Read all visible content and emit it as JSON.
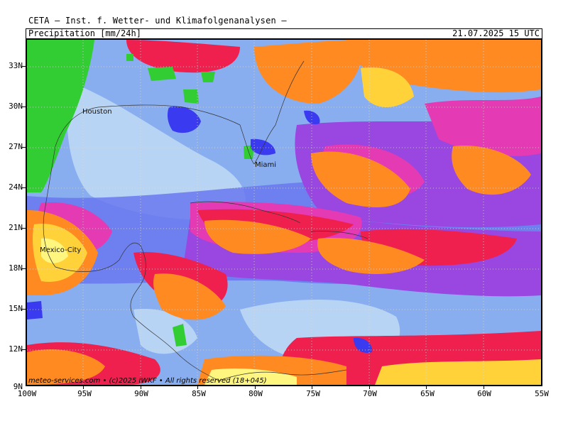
{
  "header": {
    "source": "CETA — Inst. f. Wetter- und Klimafolgenanalysen —",
    "parameter": "Precipitation [mm/24h]",
    "datetime": "21.07.2025 15 UTC"
  },
  "axes": {
    "lat_labels": [
      "33N",
      "30N",
      "27N",
      "24N",
      "21N",
      "18N",
      "15N",
      "12N",
      "9N"
    ],
    "lon_labels": [
      "100W",
      "95W",
      "90W",
      "85W",
      "80W",
      "75W",
      "70W",
      "65W",
      "60W",
      "55W"
    ]
  },
  "cities": [
    {
      "name": "Houston"
    },
    {
      "name": "Miami"
    },
    {
      "name": "Mexico-City"
    }
  ],
  "footer": {
    "credit": "meteo-services.com • (c)2025 IWKF • All rights reserved (18+045)"
  },
  "colors": {
    "land_dry": "#32cd32",
    "very_light": "#b8d4f4",
    "light": "#88aef0",
    "moderate": "#6a78ee",
    "purple": "#9a46e0",
    "magenta": "#e43ab4",
    "red": "#f0204e",
    "orange": "#ff8a22",
    "yellow_orange": "#ffd23a",
    "yellow": "#fff680",
    "blue_patch": "#3a3af0"
  }
}
